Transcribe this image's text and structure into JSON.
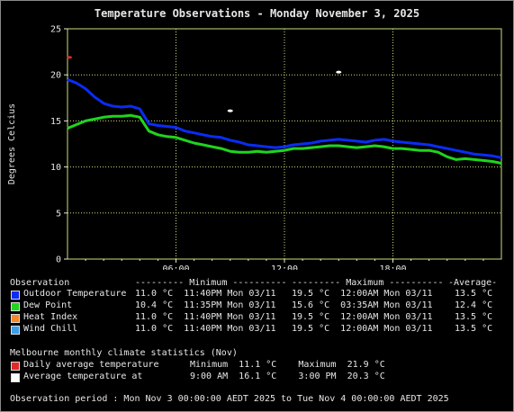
{
  "colors": {
    "plot_bg": "#000000",
    "grid": "#c8e07a",
    "outdoor_temperature": "#0a2cf5",
    "dew_point": "#1fd41f",
    "heat_index": "#f08a2c",
    "wind_chill": "#3aa0e8",
    "daily_average": "#e02a2a",
    "average_temperature": "#ffffff"
  },
  "chart_data": {
    "type": "line",
    "title": "Temperature Observations - Monday November 3, 2025",
    "ylabel": "Degrees Celcius",
    "xlabel": "",
    "xlim": [
      0,
      24
    ],
    "ylim": [
      0,
      25
    ],
    "grid": true,
    "x_ticks": [
      {
        "value": 6,
        "label": "06:00"
      },
      {
        "value": 12,
        "label": "12:00"
      },
      {
        "value": 18,
        "label": "18:00"
      }
    ],
    "y_ticks": [
      0,
      5,
      10,
      15,
      20,
      25
    ],
    "series": [
      {
        "name": "Outdoor Temperature",
        "color_key": "outdoor_temperature",
        "x": [
          0,
          0.5,
          1,
          1.5,
          2,
          2.5,
          3,
          3.5,
          4,
          4.5,
          5,
          5.5,
          6,
          6.5,
          7,
          7.5,
          8,
          8.5,
          9,
          9.5,
          10,
          10.5,
          11,
          11.5,
          12,
          12.5,
          13,
          13.5,
          14,
          14.5,
          15,
          15.5,
          16,
          16.5,
          17,
          17.5,
          18,
          18.5,
          19,
          19.5,
          20,
          20.5,
          21,
          21.5,
          22,
          22.5,
          23,
          23.5,
          24
        ],
        "values": [
          19.5,
          19.1,
          18.5,
          17.6,
          16.9,
          16.6,
          16.5,
          16.6,
          16.3,
          14.7,
          14.5,
          14.4,
          14.3,
          13.9,
          13.7,
          13.5,
          13.3,
          13.2,
          12.9,
          12.7,
          12.4,
          12.3,
          12.2,
          12.1,
          12.2,
          12.4,
          12.5,
          12.6,
          12.8,
          12.9,
          13.0,
          12.9,
          12.8,
          12.7,
          12.9,
          13.0,
          12.8,
          12.7,
          12.6,
          12.5,
          12.4,
          12.2,
          12.0,
          11.8,
          11.6,
          11.4,
          11.3,
          11.2,
          11.0
        ]
      },
      {
        "name": "Dew Point",
        "color_key": "dew_point",
        "x": [
          0,
          0.5,
          1,
          1.5,
          2,
          2.5,
          3,
          3.5,
          4,
          4.5,
          5,
          5.5,
          6,
          6.5,
          7,
          7.5,
          8,
          8.5,
          9,
          9.5,
          10,
          10.5,
          11,
          11.5,
          12,
          12.5,
          13,
          13.5,
          14,
          14.5,
          15,
          15.5,
          16,
          16.5,
          17,
          17.5,
          18,
          18.5,
          19,
          19.5,
          20,
          20.5,
          21,
          21.5,
          22,
          22.5,
          23,
          23.5,
          24
        ],
        "values": [
          14.2,
          14.6,
          15.0,
          15.2,
          15.4,
          15.5,
          15.5,
          15.6,
          15.4,
          13.9,
          13.5,
          13.3,
          13.2,
          12.9,
          12.6,
          12.4,
          12.2,
          12.0,
          11.7,
          11.6,
          11.6,
          11.7,
          11.6,
          11.7,
          11.8,
          12.0,
          12.0,
          12.1,
          12.2,
          12.3,
          12.3,
          12.2,
          12.1,
          12.2,
          12.3,
          12.2,
          12.0,
          12.0,
          11.9,
          11.8,
          11.8,
          11.6,
          11.1,
          10.8,
          10.9,
          10.8,
          10.7,
          10.6,
          10.4
        ]
      }
    ],
    "markers": [
      {
        "name": "Daily average temperature",
        "color_key": "daily_average",
        "x": 0,
        "y": 21.9
      },
      {
        "name": "Average temperature",
        "color_key": "average_temperature",
        "x": 9,
        "y": 16.1
      },
      {
        "name": "Average temperature",
        "color_key": "average_temperature",
        "x": 15,
        "y": 20.3
      }
    ]
  },
  "table": {
    "header": {
      "observation": "Observation",
      "minimum": "--------- Minimum ----------",
      "maximum": "--------- Maximum ----------",
      "average": "-Average-"
    },
    "rows": [
      {
        "label": "Outdoor Temperature",
        "color_key": "outdoor_temperature",
        "min": "11.0 °C  11:40PM Mon 03/11",
        "max": "19.5 °C  12:00AM Mon 03/11",
        "avg": "13.5 °C"
      },
      {
        "label": "Dew Point",
        "color_key": "dew_point",
        "min": "10.4 °C  11:35PM Mon 03/11",
        "max": "15.6 °C  03:35AM Mon 03/11",
        "avg": "12.4 °C"
      },
      {
        "label": "Heat Index",
        "color_key": "heat_index",
        "min": "11.0 °C  11:40PM Mon 03/11",
        "max": "19.5 °C  12:00AM Mon 03/11",
        "avg": "13.5 °C"
      },
      {
        "label": "Wind Chill",
        "color_key": "wind_chill",
        "min": "11.0 °C  11:40PM Mon 03/11",
        "max": "19.5 °C  12:00AM Mon 03/11",
        "avg": "13.5 °C"
      }
    ]
  },
  "climate": {
    "heading": "Melbourne monthly climate statistics (Nov)",
    "rows": [
      {
        "label": "Daily average temperature",
        "color_key": "daily_average",
        "text": "Minimum  11.1 °C    Maximum  21.9 °C"
      },
      {
        "label": "Average temperature at",
        "color_key": "average_temperature",
        "text": "9:00 AM  16.1 °C    3:00 PM  20.3 °C"
      }
    ]
  },
  "footer": {
    "period": "Observation period : Mon Nov 3 00:00:00 AEDT 2025 to Tue Nov 4 00:00:00 AEDT 2025"
  }
}
